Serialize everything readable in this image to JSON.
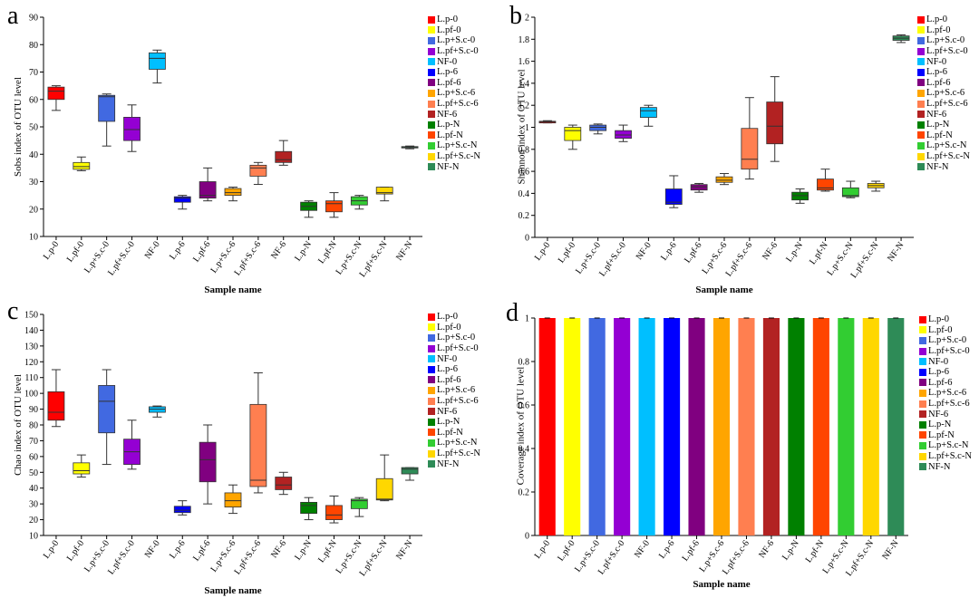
{
  "categories": [
    "L.p-0",
    "L.pf-0",
    "L.p+S.c-0",
    "L.pf+S.c-0",
    "NF-0",
    "L.p-6",
    "L.pf-6",
    "L.p+S.c-6",
    "L.pf+S.c-6",
    "NF-6",
    "L.p-N",
    "L.pf-N",
    "L.p+S.c-N",
    "L.pf+S.c-N",
    "NF-N"
  ],
  "colors": [
    "#ff0000",
    "#ffff00",
    "#4169e1",
    "#9400d3",
    "#00bfff",
    "#0000ff",
    "#800080",
    "#ffa500",
    "#ff7f50",
    "#b22222",
    "#008000",
    "#ff4500",
    "#32cd32",
    "#ffd700",
    "#2e8b57"
  ],
  "xlabel": "Sample name",
  "chart_data": [
    {
      "panel": "a",
      "type": "box",
      "ylabel": "Sobs index of OTU level",
      "ylim": [
        10,
        90
      ],
      "yticks": [
        10,
        20,
        30,
        40,
        50,
        60,
        70,
        80,
        90
      ],
      "boxes": [
        {
          "min": 56,
          "q1": 60,
          "median": 63,
          "q3": 64.5,
          "max": 65
        },
        {
          "min": 34,
          "q1": 34.5,
          "median": 35.5,
          "q3": 37,
          "max": 39
        },
        {
          "min": 43,
          "q1": 52,
          "median": 61,
          "q3": 61.5,
          "max": 62
        },
        {
          "min": 41,
          "q1": 45,
          "median": 49,
          "q3": 53.5,
          "max": 58
        },
        {
          "min": 66,
          "q1": 71,
          "median": 75,
          "q3": 77,
          "max": 78
        },
        {
          "min": 20,
          "q1": 22.5,
          "median": 24,
          "q3": 24.5,
          "max": 25
        },
        {
          "min": 23,
          "q1": 24,
          "median": 25,
          "q3": 30,
          "max": 35
        },
        {
          "min": 23,
          "q1": 25,
          "median": 26,
          "q3": 27.5,
          "max": 28
        },
        {
          "min": 29,
          "q1": 32,
          "median": 35,
          "q3": 36,
          "max": 37
        },
        {
          "min": 36,
          "q1": 37,
          "median": 38,
          "q3": 41,
          "max": 45
        },
        {
          "min": 17,
          "q1": 19.5,
          "median": 21,
          "q3": 22.5,
          "max": 23
        },
        {
          "min": 17,
          "q1": 19,
          "median": 22,
          "q3": 23,
          "max": 26
        },
        {
          "min": 20,
          "q1": 21.5,
          "median": 23,
          "q3": 24.5,
          "max": 25
        },
        {
          "min": 23,
          "q1": 25.5,
          "median": 26,
          "q3": 28,
          "max": 28
        },
        {
          "min": 42,
          "q1": 42.3,
          "median": 42.5,
          "q3": 42.8,
          "max": 43
        }
      ]
    },
    {
      "panel": "b",
      "type": "box",
      "ylabel": "Shannon index of OTU level",
      "ylim": [
        0,
        2
      ],
      "yticks": [
        0,
        0.2,
        0.4,
        0.6,
        0.8,
        1,
        1.2,
        1.4,
        1.6,
        1.8,
        2
      ],
      "boxes": [
        {
          "min": 1.04,
          "q1": 1.04,
          "median": 1.05,
          "q3": 1.055,
          "max": 1.06
        },
        {
          "min": 0.8,
          "q1": 0.88,
          "median": 0.97,
          "q3": 1.0,
          "max": 1.02
        },
        {
          "min": 0.94,
          "q1": 0.97,
          "median": 1.0,
          "q3": 1.02,
          "max": 1.03
        },
        {
          "min": 0.87,
          "q1": 0.9,
          "median": 0.93,
          "q3": 0.97,
          "max": 1.02
        },
        {
          "min": 1.01,
          "q1": 1.09,
          "median": 1.15,
          "q3": 1.18,
          "max": 1.2
        },
        {
          "min": 0.27,
          "q1": 0.3,
          "median": 0.32,
          "q3": 0.44,
          "max": 0.56
        },
        {
          "min": 0.41,
          "q1": 0.43,
          "median": 0.46,
          "q3": 0.48,
          "max": 0.49
        },
        {
          "min": 0.48,
          "q1": 0.5,
          "median": 0.52,
          "q3": 0.55,
          "max": 0.58
        },
        {
          "min": 0.53,
          "q1": 0.62,
          "median": 0.71,
          "q3": 0.99,
          "max": 1.27
        },
        {
          "min": 0.69,
          "q1": 0.85,
          "median": 1.01,
          "q3": 1.23,
          "max": 1.46
        },
        {
          "min": 0.31,
          "q1": 0.34,
          "median": 0.38,
          "q3": 0.41,
          "max": 0.44
        },
        {
          "min": 0.42,
          "q1": 0.43,
          "median": 0.45,
          "q3": 0.53,
          "max": 0.62
        },
        {
          "min": 0.36,
          "q1": 0.37,
          "median": 0.38,
          "q3": 0.45,
          "max": 0.51
        },
        {
          "min": 0.42,
          "q1": 0.45,
          "median": 0.47,
          "q3": 0.49,
          "max": 0.51
        },
        {
          "min": 1.77,
          "q1": 1.79,
          "median": 1.81,
          "q3": 1.83,
          "max": 1.84
        }
      ]
    },
    {
      "panel": "c",
      "type": "box",
      "ylabel": "Chao index of OTU level",
      "ylim": [
        10,
        150
      ],
      "yticks": [
        10,
        20,
        30,
        40,
        50,
        60,
        70,
        80,
        90,
        100,
        110,
        120,
        130,
        140,
        150
      ],
      "boxes": [
        {
          "min": 79,
          "q1": 83,
          "median": 88,
          "q3": 101,
          "max": 115
        },
        {
          "min": 47,
          "q1": 49,
          "median": 51,
          "q3": 56,
          "max": 61
        },
        {
          "min": 55,
          "q1": 75,
          "median": 95,
          "q3": 105,
          "max": 115
        },
        {
          "min": 52,
          "q1": 55,
          "median": 63,
          "q3": 71,
          "max": 83
        },
        {
          "min": 85,
          "q1": 88,
          "median": 90,
          "q3": 91.5,
          "max": 92
        },
        {
          "min": 23,
          "q1": 24.5,
          "median": 26,
          "q3": 28.5,
          "max": 32
        },
        {
          "min": 30,
          "q1": 44,
          "median": 58,
          "q3": 69,
          "max": 80
        },
        {
          "min": 24,
          "q1": 28,
          "median": 32,
          "q3": 37,
          "max": 42
        },
        {
          "min": 37,
          "q1": 41,
          "median": 45,
          "q3": 93,
          "max": 113
        },
        {
          "min": 36,
          "q1": 39,
          "median": 42,
          "q3": 47,
          "max": 50
        },
        {
          "min": 20,
          "q1": 24,
          "median": 29,
          "q3": 31,
          "max": 34
        },
        {
          "min": 18,
          "q1": 20,
          "median": 23,
          "q3": 29,
          "max": 35
        },
        {
          "min": 22,
          "q1": 27,
          "median": 32,
          "q3": 33,
          "max": 34
        },
        {
          "min": 32,
          "q1": 32.5,
          "median": 33,
          "q3": 46,
          "max": 61
        },
        {
          "min": 45,
          "q1": 49,
          "median": 52,
          "q3": 53,
          "max": 53
        }
      ]
    },
    {
      "panel": "d",
      "type": "bar",
      "ylabel": "Coverage index of OTU level",
      "ylim": [
        0,
        1
      ],
      "yticks": [
        0,
        0.2,
        0.4,
        0.6,
        0.8,
        1
      ],
      "values": [
        1,
        1,
        1,
        1,
        1,
        1,
        1,
        1,
        1,
        1,
        1,
        1,
        1,
        1,
        1
      ]
    }
  ]
}
